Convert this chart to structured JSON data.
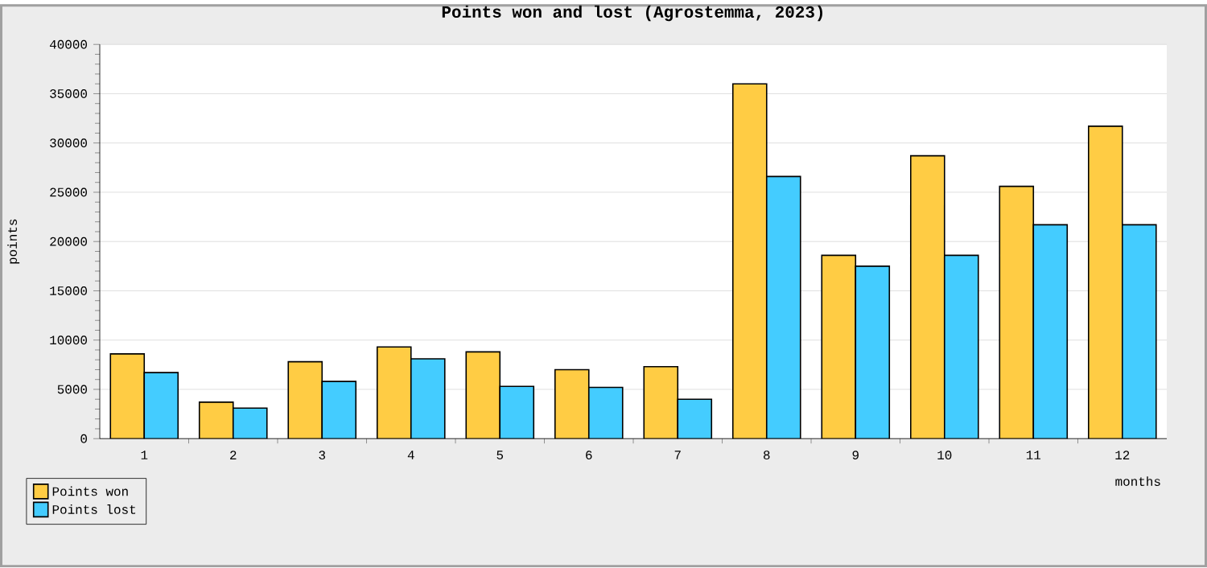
{
  "chart_data": {
    "type": "bar",
    "title": "Points won and lost (Agrostemma, 2023)",
    "xlabel": "months",
    "ylabel": "points",
    "categories": [
      "1",
      "2",
      "3",
      "4",
      "5",
      "6",
      "7",
      "8",
      "9",
      "10",
      "11",
      "12"
    ],
    "series": [
      {
        "name": "Points won",
        "color": "#ffcc44",
        "values": [
          8600,
          3700,
          7800,
          9300,
          8800,
          7000,
          7300,
          36000,
          18600,
          28700,
          25600,
          31700
        ]
      },
      {
        "name": "Points lost",
        "color": "#44ccff",
        "values": [
          6700,
          3100,
          5800,
          8100,
          5300,
          5200,
          4000,
          26600,
          17500,
          18600,
          21700,
          21700
        ]
      }
    ],
    "ylim": [
      0,
      40000
    ],
    "yticks": [
      0,
      5000,
      10000,
      15000,
      20000,
      25000,
      30000,
      35000,
      40000
    ],
    "grid": "y",
    "legend": "bottom left"
  }
}
